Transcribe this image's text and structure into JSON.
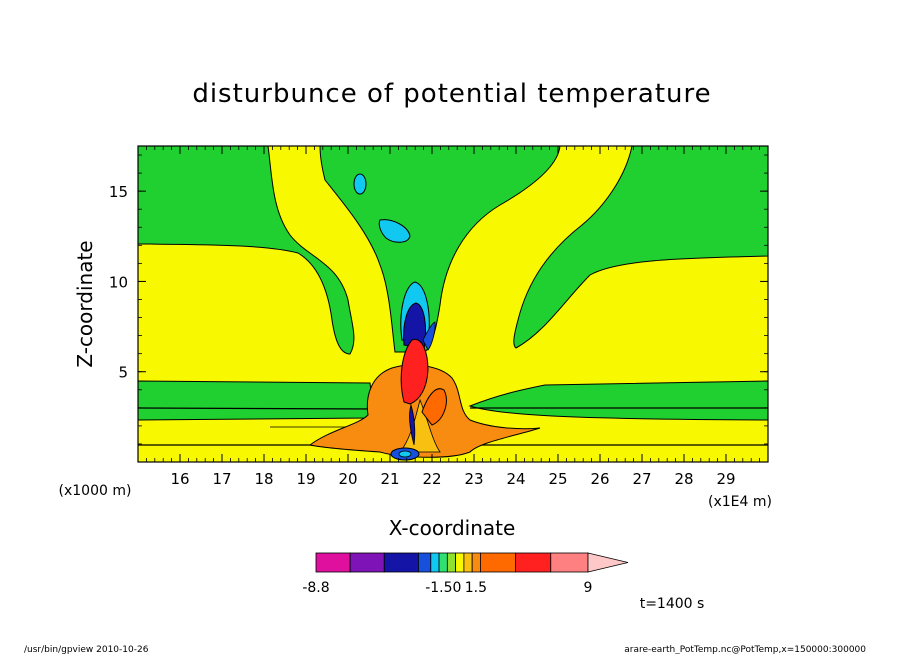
{
  "chart_data": {
    "type": "contour",
    "title": "disturbunce of potential temperature",
    "xlabel": "X-coordinate",
    "ylabel": "Z-coordinate",
    "x_unit": "(x1E4 m)",
    "y_unit": "(x1000 m)",
    "x_ticks": [
      "16",
      "17",
      "18",
      "19",
      "20",
      "21",
      "22",
      "23",
      "24",
      "25",
      "26",
      "27",
      "28",
      "29"
    ],
    "y_ticks": [
      "5",
      "10",
      "15"
    ],
    "xlim": [
      15.0,
      30.0
    ],
    "ylim": [
      0.0,
      17.5
    ],
    "colorbar": {
      "labels": [
        {
          "text": "-8.8",
          "value": -8.8
        },
        {
          "text": "-1.50",
          "value": -1.5
        },
        {
          "text": "1.5",
          "value": 1.5
        },
        {
          "text": "9",
          "value": 9
        }
      ],
      "colors": [
        "#e0109e",
        "#7e14b8",
        "#1414a6",
        "#1650dc",
        "#10c8f0",
        "#30e070",
        "#90e030",
        "#f8f800",
        "#f8c010",
        "#f88c10",
        "#ff6a00",
        "#ff2020",
        "#ff8080",
        "#ffc8c8"
      ]
    },
    "time_label": "t=1400 s",
    "background_color": "#f8f800",
    "negative_color": "#20d030"
  },
  "footer": {
    "left": "/usr/bin/gpview   2010-10-26",
    "right": "arare-earth_PotTemp.nc@PotTemp,x=150000:300000"
  }
}
